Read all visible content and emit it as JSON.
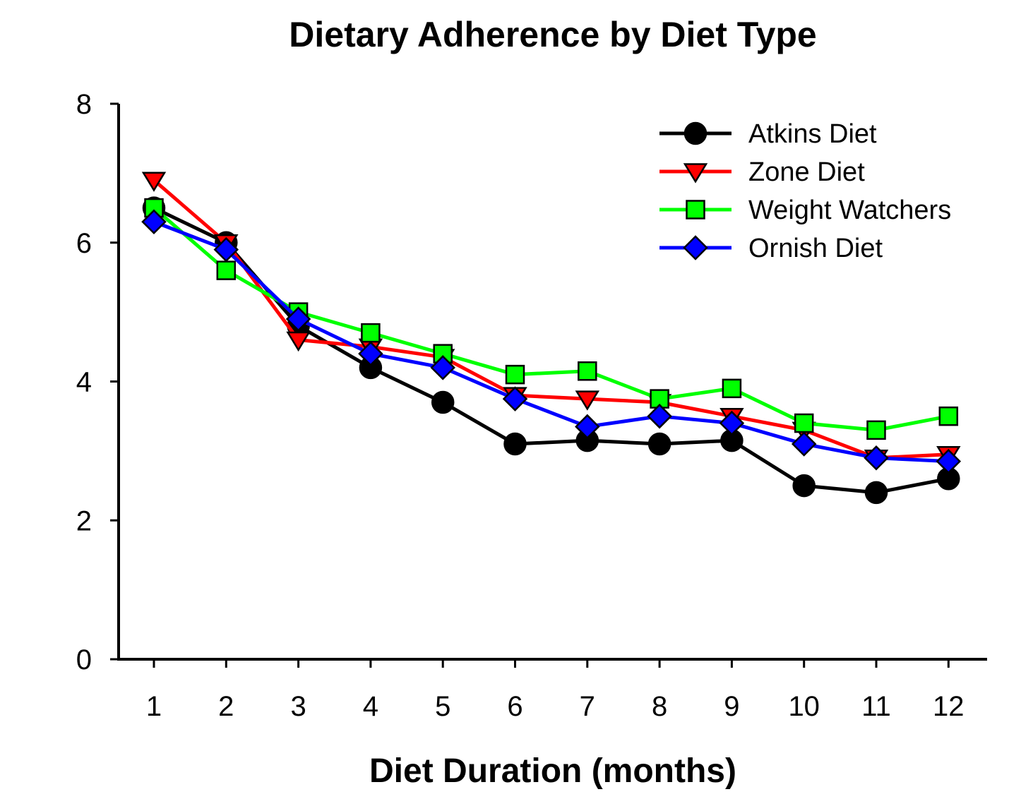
{
  "chart_data": {
    "type": "line",
    "title": "Dietary Adherence by Diet Type",
    "xlabel": "Diet Duration (months)",
    "ylabel": "",
    "x": [
      1,
      2,
      3,
      4,
      5,
      6,
      7,
      8,
      9,
      10,
      11,
      12
    ],
    "xlim": [
      0.5,
      12.5
    ],
    "ylim": [
      0,
      8
    ],
    "yticks": [
      0,
      2,
      4,
      6,
      8
    ],
    "grid": false,
    "legend_position": "top-right",
    "series": [
      {
        "name": "Atkins Diet",
        "color": "#000000",
        "marker": "circle",
        "values": [
          6.5,
          6.0,
          4.8,
          4.2,
          3.7,
          3.1,
          3.15,
          3.1,
          3.15,
          2.5,
          2.4,
          2.6
        ]
      },
      {
        "name": "Zone Diet",
        "color": "#ff0000",
        "marker": "triangle-down",
        "values": [
          6.9,
          6.0,
          4.6,
          4.5,
          4.35,
          3.8,
          3.75,
          3.7,
          3.5,
          3.3,
          2.9,
          2.95
        ]
      },
      {
        "name": "Weight Watchers",
        "color": "#00ff00",
        "marker": "square",
        "values": [
          6.5,
          5.6,
          5.0,
          4.7,
          4.4,
          4.1,
          4.15,
          3.75,
          3.9,
          3.4,
          3.3,
          3.5
        ]
      },
      {
        "name": "Ornish Diet",
        "color": "#0000ff",
        "marker": "diamond",
        "values": [
          6.3,
          5.9,
          4.9,
          4.4,
          4.2,
          3.75,
          3.35,
          3.5,
          3.4,
          3.1,
          2.9,
          2.85
        ]
      }
    ]
  }
}
